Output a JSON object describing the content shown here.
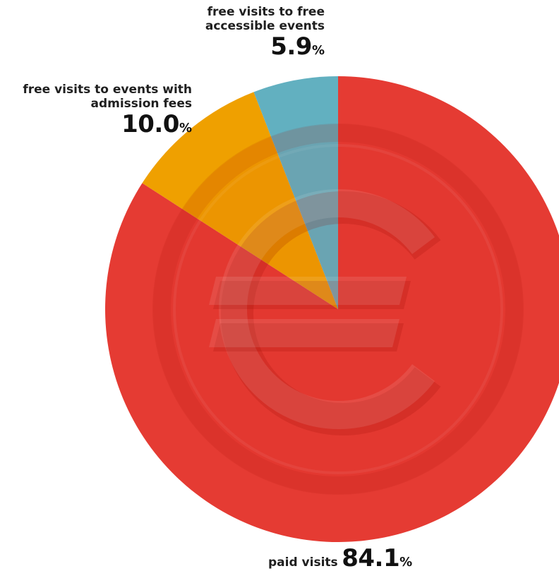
{
  "chart_data": {
    "type": "pie",
    "start_angle_deg": 0,
    "direction": "clockwise",
    "background_symbol": "euro-icon",
    "slices": [
      {
        "label": "paid visits",
        "value": 84.1,
        "display": "84.1",
        "unit": "%",
        "color": "#e53b33"
      },
      {
        "label": "free visits to events with admission fees",
        "value": 10.0,
        "display": "10.0",
        "unit": "%",
        "color": "#efa000"
      },
      {
        "label": "free visits to free accessible events",
        "value": 5.9,
        "display": "5.9",
        "unit": "%",
        "color": "#62b0c0"
      }
    ]
  },
  "labels": {
    "free_events": {
      "line1": "free visits to free",
      "line2": "accessible events",
      "value": "5.9",
      "unit": "%"
    },
    "admission": {
      "line1": "free visits to events with",
      "line2": "admission fees",
      "value": "10.0",
      "unit": "%"
    },
    "paid": {
      "text": "paid visits",
      "value": "84.1",
      "unit": "%"
    }
  }
}
